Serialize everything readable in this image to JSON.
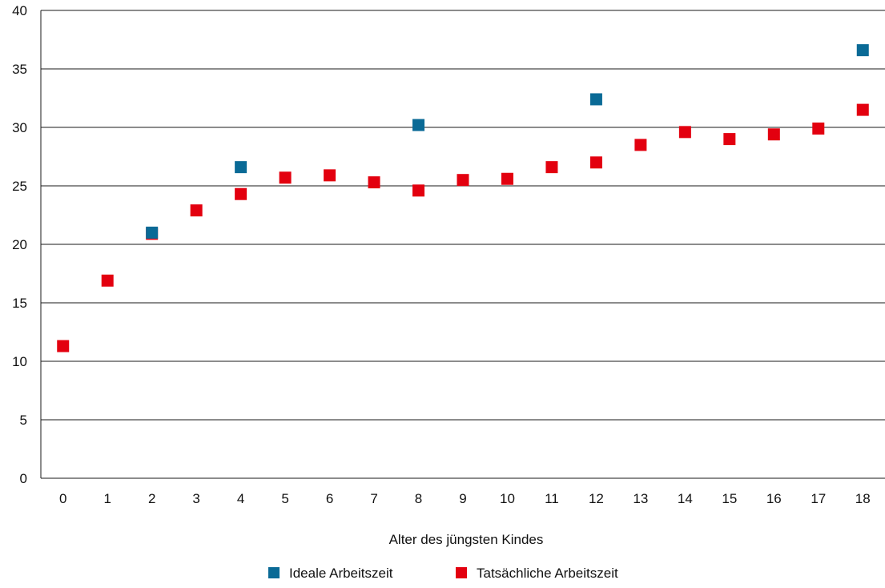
{
  "chart_data": {
    "type": "scatter",
    "title": "",
    "xlabel": "Alter des jüngsten Kindes",
    "ylabel": "",
    "ylim": [
      0,
      40
    ],
    "y_ticks": [
      "0",
      "5",
      "10",
      "15",
      "20",
      "25",
      "30",
      "35",
      "40"
    ],
    "categories": [
      "0",
      "1",
      "2",
      "3",
      "4",
      "5",
      "6",
      "7",
      "8",
      "9",
      "10",
      "11",
      "12",
      "13",
      "14",
      "15",
      "16",
      "17",
      "18"
    ],
    "grid": "horizontal",
    "legend_position": "bottom",
    "series": [
      {
        "name": "Ideale Arbeitszeit",
        "color": "#0a6a96",
        "x": [
          2,
          4,
          8,
          12,
          18
        ],
        "y": [
          21.0,
          26.6,
          30.2,
          32.4,
          36.6
        ]
      },
      {
        "name": "Tatsächliche Arbeitszeit",
        "color": "#e3000f",
        "x": [
          0,
          1,
          2,
          3,
          4,
          5,
          6,
          7,
          8,
          9,
          10,
          11,
          12,
          13,
          14,
          15,
          16,
          17,
          18
        ],
        "y": [
          11.3,
          16.9,
          20.9,
          22.9,
          24.3,
          25.7,
          25.9,
          25.3,
          24.6,
          25.5,
          25.6,
          26.6,
          27.0,
          28.5,
          29.6,
          29.0,
          29.4,
          29.9,
          31.5
        ]
      }
    ]
  }
}
